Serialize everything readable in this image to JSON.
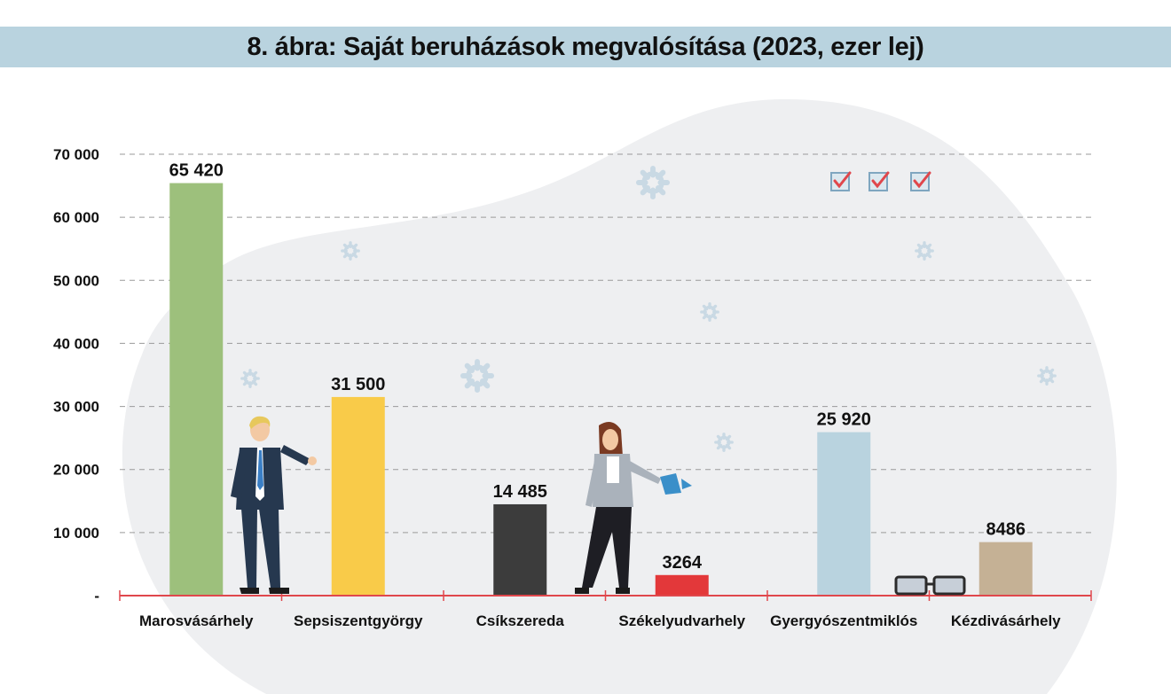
{
  "title": "8. ábra: Saját beruházások megvalósítása (2023, ezer lej)",
  "colors": {
    "title_band": "#b9d3df",
    "axis": "#e0474c",
    "grid": "#9a9a9a",
    "blob": "#eeeff1",
    "gear": "#c9d9e4"
  },
  "chart_data": {
    "type": "bar",
    "title": "8. ábra: Saját beruházások megvalósítása (2023, ezer lej)",
    "categories": [
      "Marosvásárhely",
      "Sepsiszentgyörgy",
      "Csíkszereda",
      "Székelyudvarhely",
      "Gyergyószentmiklós",
      "Kézdivásárhely"
    ],
    "values": [
      65420,
      31500,
      14485,
      3264,
      25920,
      8486
    ],
    "value_labels": [
      "65 420",
      "31 500",
      "14 485",
      "3264",
      "25 920",
      "8486"
    ],
    "bar_colors": [
      "#9dc07c",
      "#f9cb49",
      "#3c3c3c",
      "#e3383a",
      "#b9d3df",
      "#c5b195"
    ],
    "ylim": [
      0,
      70000
    ],
    "yticks": [
      0,
      10000,
      20000,
      30000,
      40000,
      50000,
      60000,
      70000
    ],
    "ytick_labels": [
      "-",
      "10 000",
      "20 000",
      "30 000",
      "40 000",
      "50 000",
      "60 000",
      "70 000"
    ],
    "grid": true,
    "legend": "none",
    "xlabel": "",
    "ylabel": ""
  }
}
